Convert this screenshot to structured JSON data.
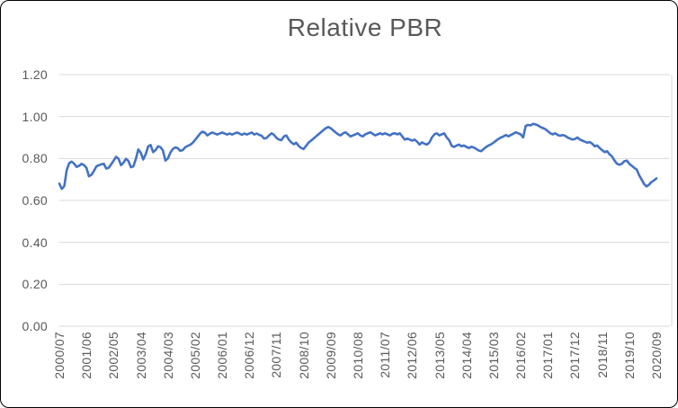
{
  "title": "Relative PBR",
  "colors": {
    "line": "#4472C4",
    "gridline": "#D9D9D9",
    "text": "#595959",
    "border": "#000000",
    "background": "#FFFFFF"
  },
  "chart_data": {
    "type": "line",
    "title": "Relative PBR",
    "xlabel": "",
    "ylabel": "",
    "legend": "none",
    "grid": "horizontal",
    "ylim": [
      0.0,
      1.2
    ],
    "y_ticks": [
      0.0,
      0.2,
      0.4,
      0.6,
      0.8,
      1.0,
      1.2
    ],
    "y_tick_labels": [
      "0.00",
      "0.20",
      "0.40",
      "0.60",
      "0.80",
      "1.00",
      "1.20"
    ],
    "x_frequency": "monthly",
    "x_tick_every_n_points": 11,
    "x_tick_labels": [
      "2000/07",
      "2001/06",
      "2002/05",
      "2003/04",
      "2004/03",
      "2005/02",
      "2006/01",
      "2006/12",
      "2007/11",
      "2008/10",
      "2009/09",
      "2010/08",
      "2011/07",
      "2012/06",
      "2013/05",
      "2014/04",
      "2015/03",
      "2016/02",
      "2017/01",
      "2017/12",
      "2018/11",
      "2019/10",
      "2020/09"
    ],
    "series_name": "Relative PBR",
    "values": [
      0.68,
      0.655,
      0.668,
      0.745,
      0.778,
      0.785,
      0.775,
      0.76,
      0.765,
      0.775,
      0.768,
      0.755,
      0.715,
      0.722,
      0.74,
      0.762,
      0.768,
      0.772,
      0.775,
      0.752,
      0.755,
      0.772,
      0.79,
      0.808,
      0.798,
      0.768,
      0.78,
      0.798,
      0.788,
      0.758,
      0.762,
      0.798,
      0.843,
      0.828,
      0.795,
      0.82,
      0.858,
      0.864,
      0.83,
      0.84,
      0.858,
      0.854,
      0.838,
      0.79,
      0.8,
      0.828,
      0.845,
      0.853,
      0.849,
      0.836,
      0.84,
      0.853,
      0.86,
      0.865,
      0.874,
      0.888,
      0.903,
      0.918,
      0.928,
      0.923,
      0.91,
      0.918,
      0.924,
      0.919,
      0.914,
      0.919,
      0.924,
      0.919,
      0.914,
      0.919,
      0.914,
      0.919,
      0.924,
      0.919,
      0.913,
      0.919,
      0.914,
      0.919,
      0.924,
      0.914,
      0.919,
      0.913,
      0.908,
      0.895,
      0.898,
      0.91,
      0.92,
      0.913,
      0.898,
      0.89,
      0.887,
      0.905,
      0.91,
      0.89,
      0.877,
      0.868,
      0.875,
      0.86,
      0.85,
      0.845,
      0.86,
      0.875,
      0.885,
      0.895,
      0.905,
      0.915,
      0.925,
      0.935,
      0.944,
      0.95,
      0.944,
      0.934,
      0.924,
      0.915,
      0.91,
      0.92,
      0.925,
      0.915,
      0.905,
      0.91,
      0.915,
      0.92,
      0.91,
      0.905,
      0.915,
      0.92,
      0.925,
      0.918,
      0.91,
      0.915,
      0.92,
      0.915,
      0.92,
      0.915,
      0.91,
      0.918,
      0.92,
      0.915,
      0.92,
      0.905,
      0.89,
      0.895,
      0.89,
      0.885,
      0.89,
      0.88,
      0.866,
      0.877,
      0.87,
      0.866,
      0.877,
      0.9,
      0.915,
      0.92,
      0.91,
      0.915,
      0.92,
      0.9,
      0.887,
      0.86,
      0.855,
      0.862,
      0.866,
      0.858,
      0.862,
      0.855,
      0.85,
      0.856,
      0.852,
      0.845,
      0.838,
      0.835,
      0.845,
      0.855,
      0.862,
      0.868,
      0.875,
      0.885,
      0.893,
      0.9,
      0.905,
      0.912,
      0.905,
      0.912,
      0.918,
      0.925,
      0.92,
      0.915,
      0.9,
      0.955,
      0.96,
      0.958,
      0.965,
      0.962,
      0.958,
      0.95,
      0.945,
      0.94,
      0.93,
      0.92,
      0.915,
      0.92,
      0.912,
      0.908,
      0.912,
      0.908,
      0.9,
      0.895,
      0.89,
      0.893,
      0.9,
      0.89,
      0.885,
      0.88,
      0.875,
      0.878,
      0.87,
      0.858,
      0.862,
      0.85,
      0.84,
      0.83,
      0.835,
      0.82,
      0.81,
      0.79,
      0.775,
      0.77,
      0.775,
      0.787,
      0.79,
      0.775,
      0.765,
      0.755,
      0.748,
      0.72,
      0.7,
      0.678,
      0.667,
      0.675,
      0.688,
      0.695,
      0.705
    ]
  }
}
